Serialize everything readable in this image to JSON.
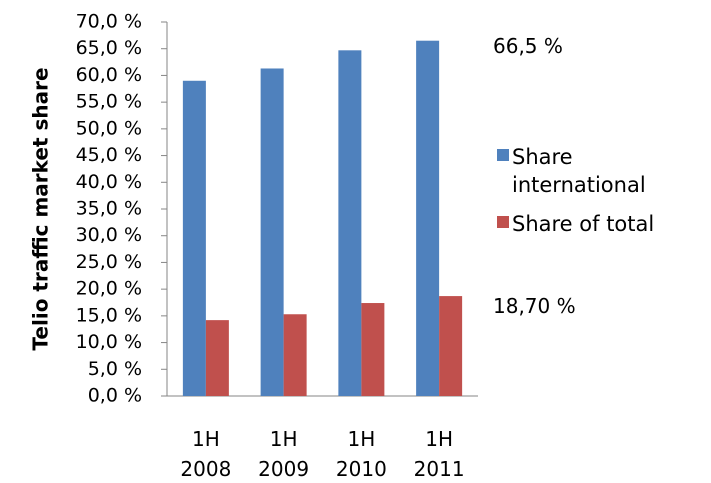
{
  "chart_data": {
    "type": "bar",
    "y_label": "Telio traffic market share",
    "categories": [
      "1H 2008",
      "1H 2009",
      "1H 2010",
      "1H 2011"
    ],
    "series": [
      {
        "name": "Share international",
        "color": "#4f81bd",
        "values": [
          59.0,
          61.3,
          64.7,
          66.5
        ]
      },
      {
        "name": "Share of total",
        "color": "#c0504d",
        "values": [
          14.2,
          15.3,
          17.4,
          18.7
        ]
      }
    ],
    "annotations": [
      "66,5 %",
      "18,70 %"
    ],
    "ylim": [
      0,
      70
    ],
    "yticks": [
      {
        "value": 0,
        "label": "0,0 %"
      },
      {
        "value": 5,
        "label": "5,0 %"
      },
      {
        "value": 10,
        "label": "10,0 %"
      },
      {
        "value": 15,
        "label": "15,0 %"
      },
      {
        "value": 20,
        "label": "20,0 %"
      },
      {
        "value": 25,
        "label": "25,0 %"
      },
      {
        "value": 30,
        "label": "30,0 %"
      },
      {
        "value": 35,
        "label": "35,0 %"
      },
      {
        "value": 40,
        "label": "40,0 %"
      },
      {
        "value": 45,
        "label": "45,0 %"
      },
      {
        "value": 50,
        "label": "50,0 %"
      },
      {
        "value": 55,
        "label": "55,0 %"
      },
      {
        "value": 60,
        "label": "60,0 %"
      },
      {
        "value": 65,
        "label": "65,0 %"
      },
      {
        "value": 70,
        "label": "70,0 %"
      }
    ],
    "grid": false,
    "legend": "right"
  }
}
